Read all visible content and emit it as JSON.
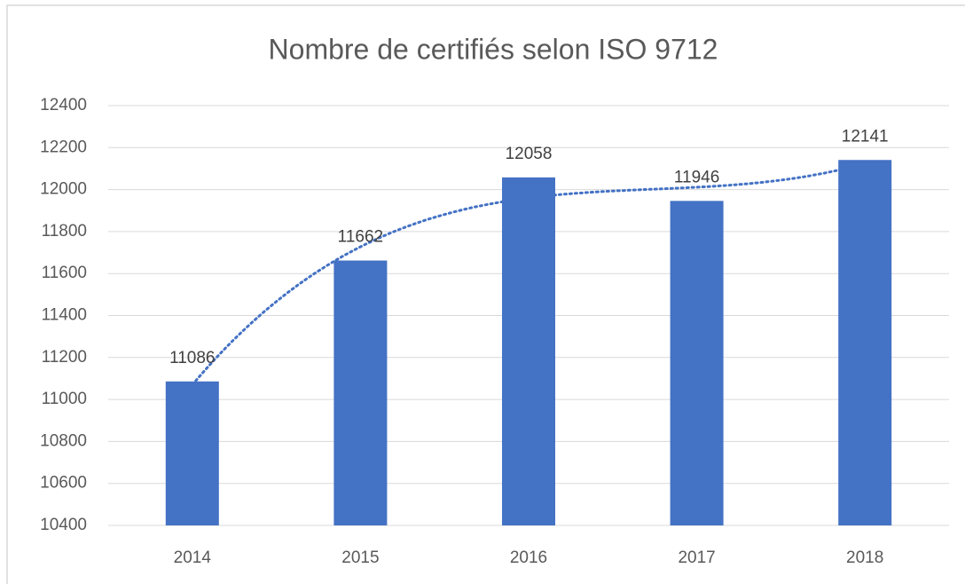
{
  "chart_data": {
    "type": "bar",
    "title": "Nombre de certifiés selon ISO 9712",
    "categories": [
      "2014",
      "2015",
      "2016",
      "2017",
      "2018"
    ],
    "values": [
      11086,
      11662,
      12058,
      11946,
      12141
    ],
    "color": "#4472c4",
    "ylim": [
      10400,
      12400
    ],
    "yticks": [
      10400,
      10600,
      10800,
      11000,
      11200,
      11400,
      11600,
      11800,
      12000,
      12200,
      12400
    ],
    "grid": true,
    "data_labels": true,
    "trendline": {
      "type": "polynomial",
      "color": "#4472c4"
    }
  }
}
